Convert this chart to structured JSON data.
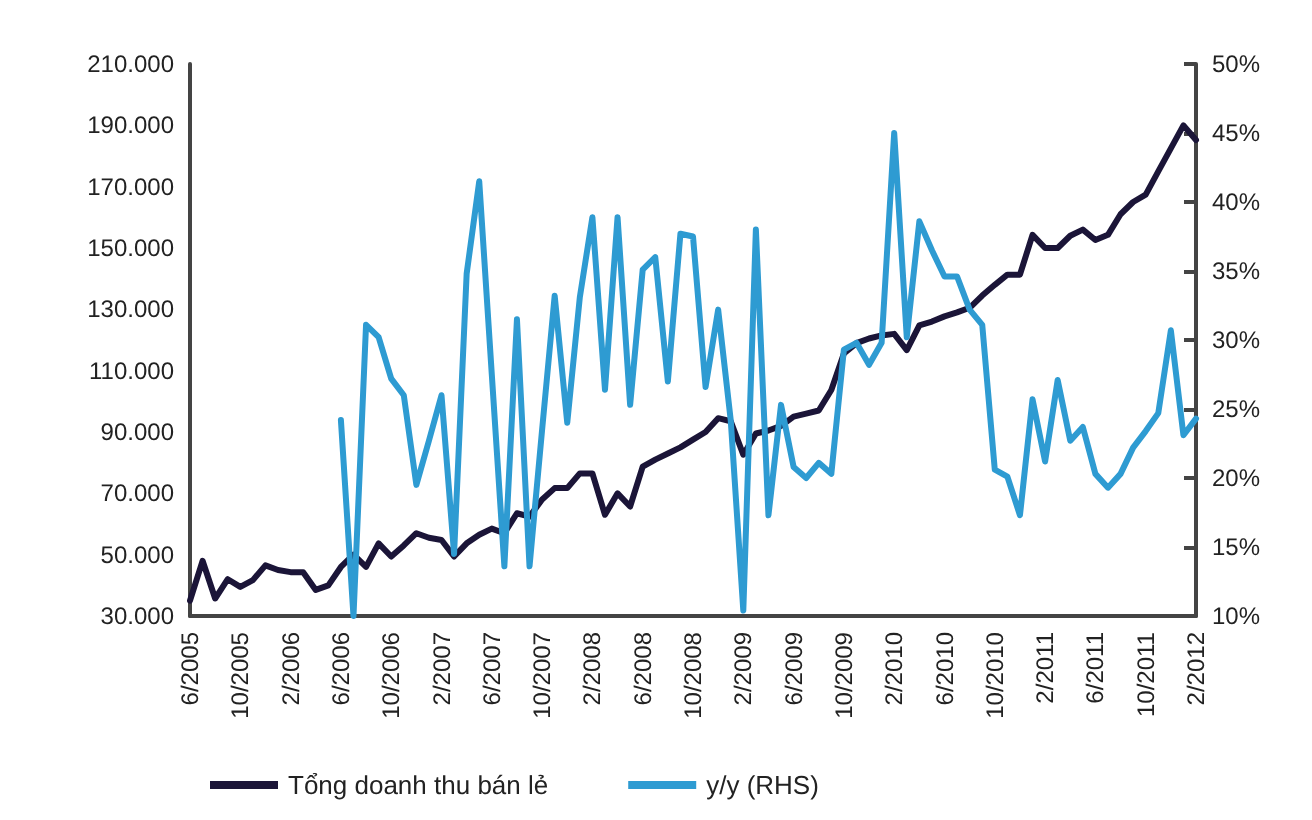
{
  "chart_data": {
    "type": "line",
    "categories": [
      "6/2005",
      null,
      null,
      null,
      "10/2005",
      null,
      null,
      null,
      "2/2006",
      null,
      null,
      null,
      "6/2006",
      null,
      null,
      null,
      "10/2006",
      null,
      null,
      null,
      "2/2007",
      null,
      null,
      null,
      "6/2007",
      null,
      null,
      null,
      "10/2007",
      null,
      null,
      null,
      "2/2008",
      null,
      null,
      null,
      "6/2008",
      null,
      null,
      null,
      "10/2008",
      null,
      null,
      null,
      "2/2009",
      null,
      null,
      null,
      "6/2009",
      null,
      null,
      null,
      "10/2009",
      null,
      null,
      null,
      "2/2010",
      null,
      null,
      null,
      "6/2010",
      null,
      null,
      null,
      "10/2010",
      null,
      null,
      null,
      "2/2011",
      null,
      null,
      null,
      "6/2011",
      null,
      null,
      null,
      "10/2011",
      null,
      null,
      null,
      "2/2012"
    ],
    "series": [
      {
        "name": "Tổng doanh thu bán lẻ",
        "color": "#1b1538",
        "values": [
          35000,
          48000,
          35700,
          42000,
          39500,
          41700,
          46500,
          45000,
          44300,
          44300,
          38500,
          40000,
          46000,
          50000,
          46000,
          53700,
          49400,
          53000,
          57000,
          55500,
          54800,
          49400,
          53700,
          56500,
          58500,
          57000,
          63500,
          62400,
          68000,
          71700,
          71700,
          76500,
          76500,
          63000,
          70000,
          65700,
          78700,
          81000,
          83000,
          85000,
          87500,
          90000,
          94500,
          93500,
          82600,
          89500,
          90500,
          92000,
          95000,
          96000,
          97000,
          103700,
          115600,
          119000,
          120500,
          121500,
          122000,
          116700,
          124800,
          126000,
          127700,
          129000,
          130500,
          134500,
          138000,
          141300,
          141300,
          154300,
          150000,
          150000,
          154000,
          156000,
          152600,
          154300,
          161000,
          165000,
          167400,
          175000,
          182500,
          190000,
          185200
        ]
      },
      {
        "name": "y/y (RHS)",
        "color": "#2e9bd2",
        "axis": "y2",
        "values": [
          null,
          null,
          null,
          null,
          null,
          null,
          null,
          null,
          null,
          null,
          null,
          null,
          24.2,
          10,
          31.1,
          30.2,
          27.2,
          26.0,
          19.5,
          22.7,
          26.0,
          14.5,
          34.8,
          41.5,
          27.5,
          13.6,
          31.5,
          13.6,
          23.5,
          33.2,
          24.0,
          33.1,
          38.9,
          26.4,
          38.9,
          25.3,
          35.1,
          36.0,
          27.0,
          37.7,
          37.5,
          26.6,
          32.2,
          24.2,
          10.4,
          38.0,
          17.3,
          25.3,
          20.8,
          20.0,
          21.1,
          20.3,
          29.3,
          29.8,
          28.2,
          29.8,
          45.0,
          30.2,
          38.6,
          36.5,
          34.6,
          34.6,
          32.2,
          31.1,
          20.6,
          20.1,
          17.3,
          25.7,
          21.2,
          27.1,
          22.7,
          23.7,
          20.3,
          19.3,
          20.3,
          22.2,
          23.4,
          24.7,
          30.7,
          23.1,
          24.3
        ]
      }
    ],
    "ylim": [
      30000,
      210000
    ],
    "yticks": [
      {
        "value": 30000,
        "label": "30.000"
      },
      {
        "value": 50000,
        "label": "50.000"
      },
      {
        "value": 70000,
        "label": "70.000"
      },
      {
        "value": 90000,
        "label": "90.000"
      },
      {
        "value": 110000,
        "label": "110.000"
      },
      {
        "value": 130000,
        "label": "130.000"
      },
      {
        "value": 150000,
        "label": "150.000"
      },
      {
        "value": 170000,
        "label": "170.000"
      },
      {
        "value": 190000,
        "label": "190.000"
      },
      {
        "value": 210000,
        "label": "210.000"
      }
    ],
    "y2lim": [
      10,
      50
    ],
    "y2ticks": [
      {
        "value": 10,
        "label": "10%"
      },
      {
        "value": 15,
        "label": "15%"
      },
      {
        "value": 20,
        "label": "20%"
      },
      {
        "value": 25,
        "label": "25%"
      },
      {
        "value": 30,
        "label": "30%"
      },
      {
        "value": 35,
        "label": "35%"
      },
      {
        "value": 40,
        "label": "40%"
      },
      {
        "value": 45,
        "label": "45%"
      },
      {
        "value": 50,
        "label": "50%"
      }
    ],
    "grid": false,
    "legend": "bottom left",
    "marker": "none",
    "line_style": "solid"
  }
}
